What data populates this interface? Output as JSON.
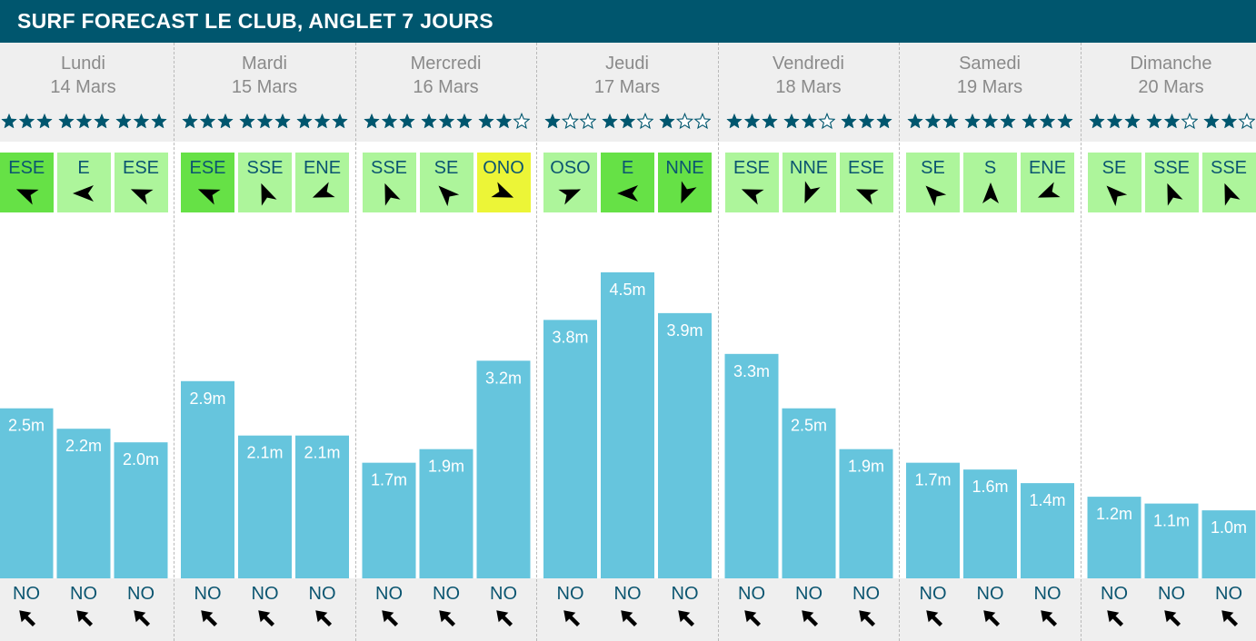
{
  "header": {
    "title": "SURF FORECAST LE CLUB, ANGLET 7 JOURS"
  },
  "colors": {
    "header_bg": "#00566e",
    "bar": "#66c5dd",
    "wind_light": "#adf59b",
    "wind_medium": "#66e146",
    "wind_strong": "#ecf537",
    "star": "#00566e",
    "text_dark": "#0b5570"
  },
  "icons": {
    "rating": "star-icon",
    "wind": "wind-arrow-icon",
    "swell": "swell-arrow-icon"
  },
  "days": [
    {
      "name": "Lundi",
      "date": "14 Mars"
    },
    {
      "name": "Mardi",
      "date": "15 Mars"
    },
    {
      "name": "Mercredi",
      "date": "16 Mars"
    },
    {
      "name": "Jeudi",
      "date": "17 Mars"
    },
    {
      "name": "Vendredi",
      "date": "18 Mars"
    },
    {
      "name": "Samedi",
      "date": "19 Mars"
    },
    {
      "name": "Dimanche",
      "date": "20 Mars"
    }
  ],
  "ratings": [
    [
      3,
      3,
      3
    ],
    [
      3,
      3,
      3
    ],
    [
      3,
      3,
      2
    ],
    [
      1,
      2,
      1
    ],
    [
      3,
      2,
      3
    ],
    [
      3,
      3,
      3
    ],
    [
      3,
      2,
      2
    ]
  ],
  "wind": [
    [
      {
        "dir": "ESE",
        "level": "medium"
      },
      {
        "dir": "E",
        "level": "light"
      },
      {
        "dir": "ESE",
        "level": "light"
      }
    ],
    [
      {
        "dir": "ESE",
        "level": "medium"
      },
      {
        "dir": "SSE",
        "level": "light"
      },
      {
        "dir": "ENE",
        "level": "light"
      }
    ],
    [
      {
        "dir": "SSE",
        "level": "light"
      },
      {
        "dir": "SE",
        "level": "light"
      },
      {
        "dir": "ONO",
        "level": "strong"
      }
    ],
    [
      {
        "dir": "OSO",
        "level": "light"
      },
      {
        "dir": "E",
        "level": "medium"
      },
      {
        "dir": "NNE",
        "level": "medium"
      }
    ],
    [
      {
        "dir": "ESE",
        "level": "light"
      },
      {
        "dir": "NNE",
        "level": "light"
      },
      {
        "dir": "ESE",
        "level": "light"
      }
    ],
    [
      {
        "dir": "SE",
        "level": "light"
      },
      {
        "dir": "S",
        "level": "light"
      },
      {
        "dir": "ENE",
        "level": "light"
      }
    ],
    [
      {
        "dir": "SE",
        "level": "light"
      },
      {
        "dir": "SSE",
        "level": "light"
      },
      {
        "dir": "SSE",
        "level": "light"
      }
    ]
  ],
  "swell_dir": "NO",
  "chart_data": {
    "type": "bar",
    "title": "SURF FORECAST LE CLUB, ANGLET 7 JOURS",
    "unit": "m",
    "groups": [
      "Lundi 14 Mars",
      "Mardi 15 Mars",
      "Mercredi 16 Mars",
      "Jeudi 17 Mars",
      "Vendredi 18 Mars",
      "Samedi 19 Mars",
      "Dimanche 20 Mars"
    ],
    "values": [
      [
        2.5,
        2.2,
        2.0
      ],
      [
        2.9,
        2.1,
        2.1
      ],
      [
        1.7,
        1.9,
        3.2
      ],
      [
        3.8,
        4.5,
        3.9
      ],
      [
        3.3,
        2.5,
        1.9
      ],
      [
        1.7,
        1.6,
        1.4
      ],
      [
        1.2,
        1.1,
        1.0
      ]
    ],
    "labels": [
      [
        "2.5m",
        "2.2m",
        "2.0m"
      ],
      [
        "2.9m",
        "2.1m",
        "2.1m"
      ],
      [
        "1.7m",
        "1.9m",
        "3.2m"
      ],
      [
        "3.8m",
        "4.5m",
        "3.9m"
      ],
      [
        "3.3m",
        "2.5m",
        "1.9m"
      ],
      [
        "1.7m",
        "1.6m",
        "1.4m"
      ],
      [
        "1.2m",
        "1.1m",
        "1.0m"
      ]
    ],
    "ylim": [
      0,
      5.3
    ],
    "grid": false
  }
}
